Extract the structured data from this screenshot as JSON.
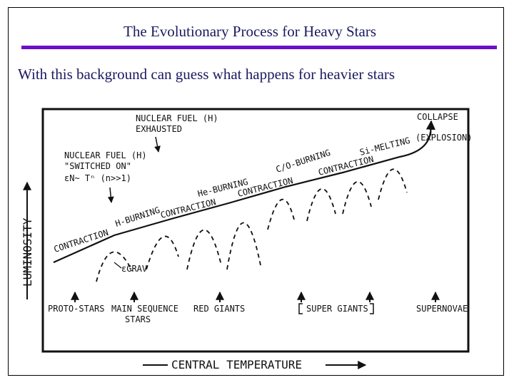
{
  "slide": {
    "title": "The  Evolutionary Process for Heavy Stars",
    "subtitle": "With this background can guess what happens for heavier stars"
  },
  "diagram": {
    "x_axis_label": "CENTRAL TEMPERATURE",
    "y_axis_label": "LUMINOSITY",
    "annotations": {
      "fuel_exhausted_line1": "NUCLEAR FUEL (H)",
      "fuel_exhausted_line2": "EXHAUSTED",
      "fuel_on_line1": "NUCLEAR   FUEL (H)",
      "fuel_on_line2": "\"SWITCHED  ON\"",
      "fuel_on_line3": "εN~ Tⁿ (n>>1)",
      "collapse": "COLLAPSE",
      "explosion": "(EXPLOSION)",
      "egrav": "εGRAV"
    },
    "curve_labels": [
      "CONTRACTION",
      "H-BURNING",
      "CONTRACTION",
      "He-BURNING",
      "CONTRACTION",
      "C/O-BURNING",
      "CONTRACTION",
      "Si-MELTING"
    ],
    "stages": {
      "proto": "PROTO-STARS",
      "main_line1": "MAIN SEQUENCE",
      "main_line2": "STARS",
      "red": "RED  GIANTS",
      "super": "SUPER  GIANTS",
      "supernovae": "SUPERNOVAE"
    }
  }
}
